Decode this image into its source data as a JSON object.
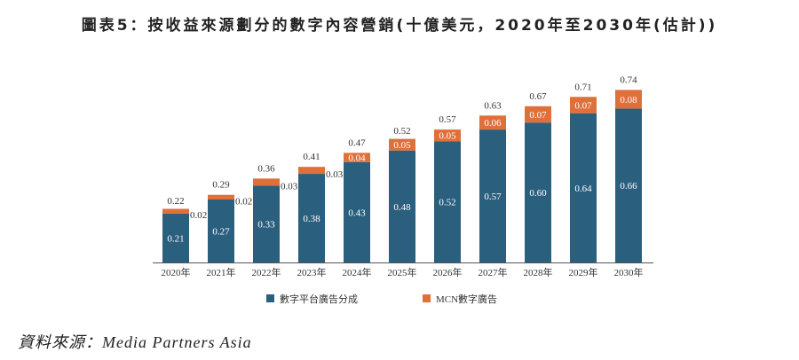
{
  "chart_data": {
    "type": "bar",
    "stacked": true,
    "title": "圖表5：按收益來源劃分的數字內容營銷(十億美元，2020年至2030年(估計))",
    "categories": [
      "2020年",
      "2021年",
      "2022年",
      "2023年",
      "2024年",
      "2025年",
      "2026年",
      "2027年",
      "2028年",
      "2029年",
      "2030年"
    ],
    "series": [
      {
        "name": "數字平台廣告分成",
        "color": "#2b5f7e",
        "values": [
          0.21,
          0.27,
          0.33,
          0.38,
          0.43,
          0.48,
          0.52,
          0.57,
          0.6,
          0.64,
          0.66
        ]
      },
      {
        "name": "MCN數字廣告",
        "color": "#e0703a",
        "values": [
          0.02,
          0.02,
          0.03,
          0.03,
          0.04,
          0.05,
          0.05,
          0.06,
          0.07,
          0.07,
          0.08
        ]
      }
    ],
    "totals": [
      0.22,
      0.29,
      0.36,
      0.41,
      0.47,
      0.52,
      0.57,
      0.63,
      0.67,
      0.71,
      0.74
    ],
    "xlabel": "",
    "ylabel": "",
    "ylim": [
      0,
      0.8
    ],
    "legend": "bottom",
    "source": "資料來源：Media Partners Asia"
  }
}
